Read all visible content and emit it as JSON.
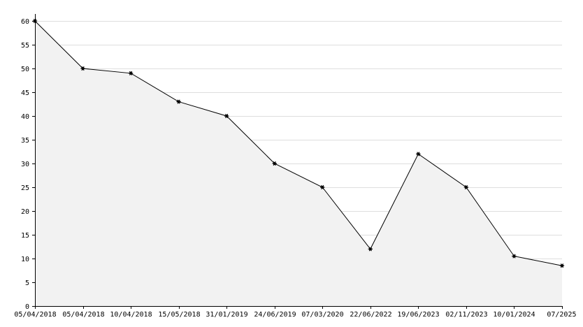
{
  "chart_data": {
    "type": "area",
    "categories": [
      "05/04/2018",
      "05/04/2018",
      "10/04/2018",
      "15/05/2018",
      "31/01/2019",
      "24/06/2019",
      "07/03/2020",
      "22/06/2022",
      "19/06/2023",
      "02/11/2023",
      "10/01/2024",
      "07/2025"
    ],
    "series": [
      {
        "values": [
          60,
          50,
          49,
          43,
          40,
          30,
          25,
          12,
          32,
          25,
          10.5,
          8.5
        ]
      }
    ],
    "title": "",
    "xlabel": "",
    "ylabel": "",
    "ylim": [
      0,
      60
    ],
    "yticks": [
      0,
      5,
      10,
      15,
      20,
      25,
      30,
      35,
      40,
      45,
      50,
      55,
      60
    ],
    "grid": true,
    "legend": "none",
    "colors": {
      "fill": "#f2f2f2",
      "line": "#000000",
      "grid": "#dedede",
      "axis": "#000000"
    }
  }
}
